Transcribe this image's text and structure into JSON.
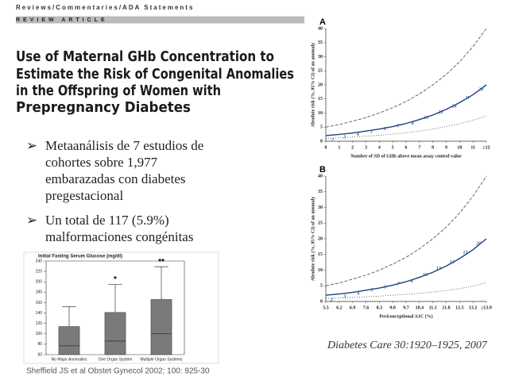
{
  "header": {
    "section": "Reviews/Commentaries/ADA Statements",
    "kind": "REVIEW ARTICLE",
    "title_lines": [
      "Use of Maternal GHb Concentration to",
      "Estimate the Risk of Congenital Anomalies",
      "in the Offspring of Women with",
      "Prepregnancy Diabetes"
    ]
  },
  "bullets": [
    [
      "Metaanálisis de 7 estudios de",
      "cohortes sobre 1,977",
      "embarazadas con diabetes",
      "pregestacional"
    ],
    [
      "Un total de 117 (5.9%)",
      "malformaciones congénitas"
    ]
  ],
  "citation_left": "Sheffield JS et al Obstet Gynecol 2002; 100: 925-30",
  "citation_right": "Diabetes Care 30:1920–1925, 2007",
  "chart_data": [
    {
      "type": "bar",
      "title": "Initial Fasting Serum Glucose (mg/dl)",
      "categories": [
        "No Major Anomalies",
        "One Organ System",
        "Multiple Organ Systems"
      ],
      "values": [
        114,
        141,
        166
      ],
      "inner_line": [
        77,
        86,
        100
      ],
      "whisker_high": [
        152,
        195,
        229
      ],
      "annotations": [
        {
          "category": 1,
          "text": "*"
        },
        {
          "category": 2,
          "text": "**"
        }
      ],
      "color": "#7a7a7a",
      "ylim": [
        60,
        240
      ],
      "yticks": [
        60,
        80,
        100,
        120,
        140,
        160,
        180,
        200,
        220,
        240
      ]
    },
    {
      "type": "line",
      "label": "A",
      "xlabel": "Number of SD of GHb above mean assay control value",
      "ylabel": "Absolute risk (%, 95% CI) of an anomaly",
      "x": [
        0,
        1,
        2,
        3,
        4,
        5,
        6,
        7,
        8,
        9,
        10,
        11,
        12
      ],
      "series": [
        {
          "color": "#444444",
          "dash": "dash",
          "values": [
            5,
            5.9,
            7.1,
            8.4,
            10,
            11.9,
            14.1,
            16.8,
            20,
            23.7,
            28.2,
            33.6,
            40
          ]
        },
        {
          "color": "#1f3f7a",
          "dash": "solid",
          "values": [
            2,
            2.4,
            2.9,
            3.6,
            4.3,
            5.2,
            6.3,
            7.7,
            9.3,
            11.3,
            13.7,
            16.5,
            20
          ]
        },
        {
          "color": "#444444",
          "dash": "dot",
          "values": [
            1,
            1.2,
            1.5,
            1.8,
            2.1,
            2.5,
            3,
            3.6,
            4.3,
            5.2,
            6.2,
            7.4,
            9
          ]
        }
      ],
      "points": {
        "color": "#2a5ca8",
        "x": [
          0.5,
          1.4,
          2.4,
          3.4,
          4.4,
          5.4,
          6.5,
          7.5,
          8.6,
          9.6,
          10.6,
          11.6
        ],
        "values": [
          2,
          3,
          4,
          5,
          6,
          7,
          8,
          10,
          12,
          14,
          17,
          20
        ]
      },
      "xlim": [
        0,
        12
      ],
      "ylim": [
        0,
        40
      ],
      "xticks": [
        0,
        1,
        2,
        3,
        4,
        5,
        6,
        7,
        8,
        9,
        10,
        11,
        {
          "value": 12,
          "label": "≥12"
        }
      ],
      "yticks": [
        0,
        5,
        10,
        15,
        20,
        25,
        30,
        35,
        40
      ]
    },
    {
      "type": "line",
      "label": "B",
      "xlabel": "Periconceptional A1C (%)",
      "ylabel": "Absolute risk (%, 95% CI) of an anomaly",
      "x": [
        5.5,
        6.2,
        6.9,
        7.6,
        8.3,
        9,
        9.7,
        10.4,
        11.1,
        11.8,
        12.5,
        13.2,
        13.9
      ],
      "series": [
        {
          "color": "#444444",
          "dash": "dash",
          "values": [
            5,
            5.9,
            7.1,
            8.4,
            10,
            11.9,
            14.1,
            16.8,
            20,
            23.7,
            28.2,
            33.6,
            40
          ]
        },
        {
          "color": "#1f3f7a",
          "dash": "solid",
          "values": [
            2,
            2.4,
            2.9,
            3.6,
            4.3,
            5.2,
            6.3,
            7.7,
            9.3,
            11.3,
            13.7,
            16.5,
            20
          ]
        },
        {
          "color": "#444444",
          "dash": "dot",
          "values": [
            1,
            1.1,
            1.3,
            1.5,
            1.7,
            2,
            2.3,
            2.6,
            3,
            3.5,
            4.1,
            4.9,
            6
          ]
        }
      ],
      "points": {
        "color": "#2a5ca8",
        "x": [
          5.8,
          6.5,
          7.2,
          7.9,
          8.6,
          9.3,
          10,
          10.7,
          11.4,
          12.1,
          12.8,
          13.5
        ],
        "values": [
          2,
          3,
          4,
          5,
          6,
          7,
          8,
          10,
          12,
          14,
          17,
          20
        ]
      },
      "xlim": [
        5.5,
        13.9
      ],
      "ylim": [
        0,
        40
      ],
      "xticks": [
        5.5,
        6.2,
        6.9,
        7.6,
        8.3,
        {
          "value": 9,
          "label": "9.0"
        },
        9.7,
        10.4,
        11.1,
        11.8,
        12.5,
        13.2,
        {
          "value": 13.9,
          "label": "≥13.9"
        }
      ],
      "yticks": [
        0,
        5,
        10,
        15,
        20,
        25,
        30,
        35,
        40
      ]
    }
  ]
}
